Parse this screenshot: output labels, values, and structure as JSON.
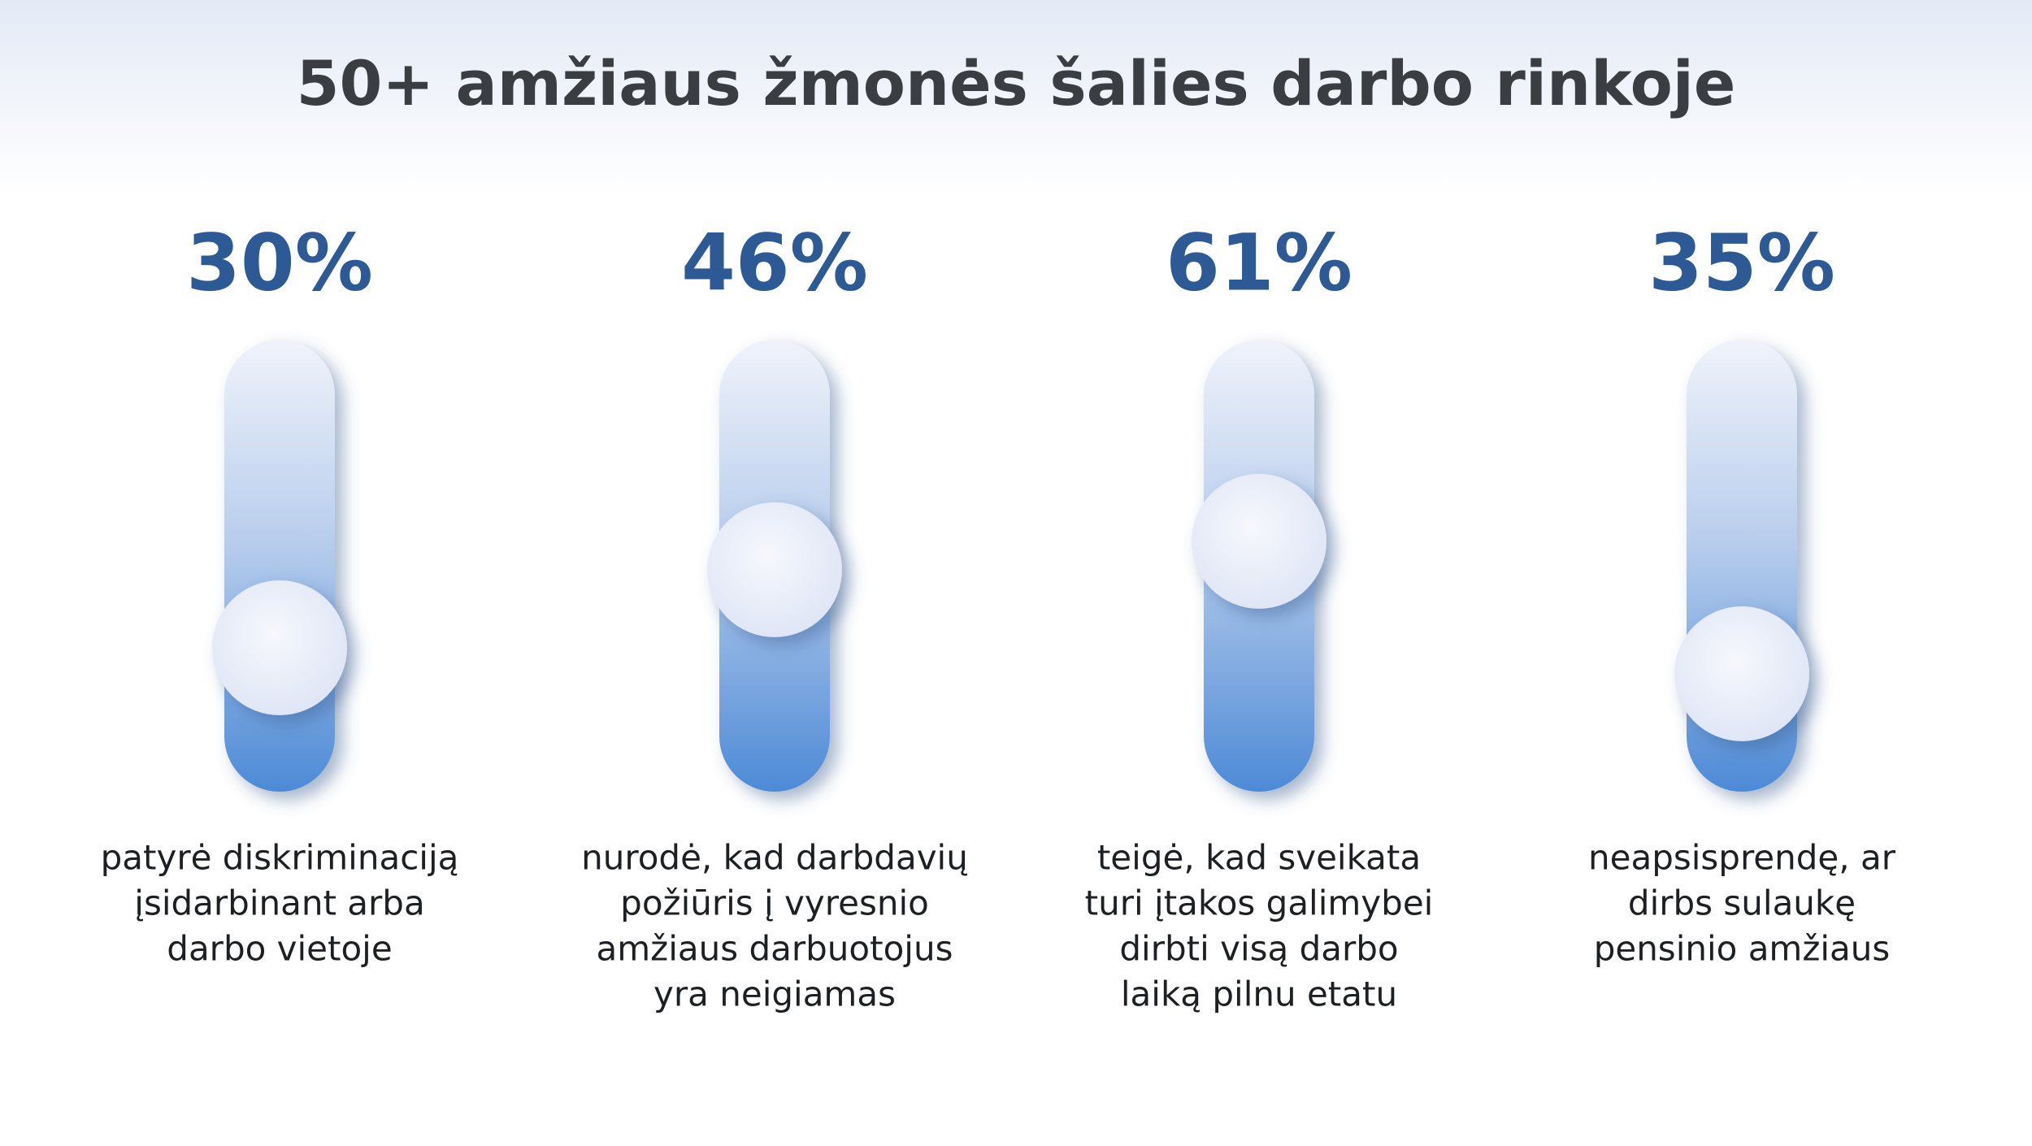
{
  "title": "50+ amžiaus žmonės šalies darbo rinkoje",
  "items": [
    {
      "value": "30%",
      "description": [
        "patyrė diskriminaciją",
        "įsidarbinant arba",
        "darbo vietoje"
      ]
    },
    {
      "value": "46%",
      "description": [
        "nurodė, kad darbdavių",
        "požiūris į vyresnio",
        "amžiaus darbuotojus",
        "yra neigiamas"
      ]
    },
    {
      "value": "61%",
      "description": [
        "teigė, kad sveikata",
        "turi įtakos galimybei",
        "dirbti visą darbo",
        "laiką pilnu etatu"
      ]
    },
    {
      "value": "35%",
      "description": [
        "neapsisprendę, ar",
        "dirbs sulaukę",
        "pensinio amžiaus"
      ]
    }
  ]
}
